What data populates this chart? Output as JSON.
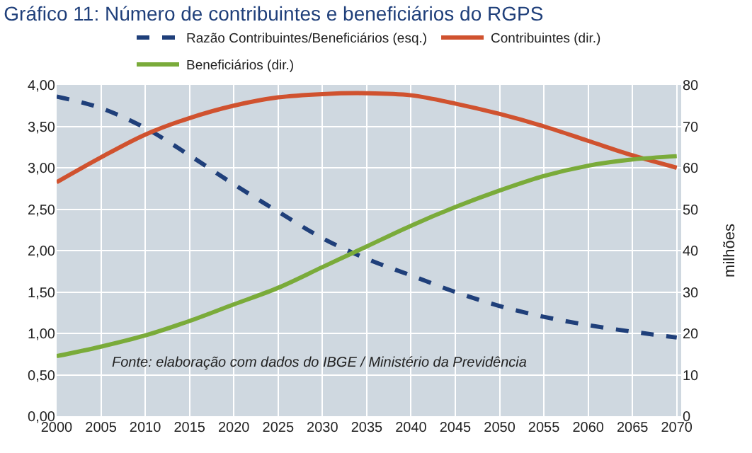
{
  "chart_data": {
    "type": "line",
    "title": "Gráfico 11: Número de contribuintes e beneficiários do RGPS",
    "y2label": "milhões",
    "x": [
      2000,
      2005,
      2010,
      2015,
      2020,
      2025,
      2030,
      2035,
      2040,
      2045,
      2050,
      2055,
      2060,
      2065,
      2070
    ],
    "series": [
      {
        "name": "Razão Contribuintes/Beneficiários (esq.)",
        "color": "#1f3f7a",
        "line_style": "dashed",
        "values": [
          3.86,
          3.72,
          3.48,
          3.15,
          2.8,
          2.47,
          2.15,
          1.9,
          1.7,
          1.5,
          1.33,
          1.2,
          1.1,
          1.02,
          0.95
        ]
      },
      {
        "name": "Contribuintes (dir.)",
        "color": "#d0522f",
        "axis": "y2",
        "values": [
          56.5,
          62.5,
          68,
          72,
          75,
          77,
          77.8,
          78,
          77.5,
          75.5,
          73,
          70,
          66.5,
          63,
          60
        ]
      },
      {
        "name": "Beneficiários (dir.)",
        "color": "#7aab3a",
        "axis": "y2",
        "values": [
          14.5,
          16.8,
          19.5,
          23,
          27,
          31,
          36,
          41,
          46,
          50.5,
          54.5,
          58,
          60.5,
          62,
          62.8
        ]
      }
    ],
    "xlim": [
      2000,
      2070.5
    ],
    "xticks": [
      2000,
      2005,
      2010,
      2015,
      2020,
      2025,
      2030,
      2035,
      2040,
      2045,
      2050,
      2055,
      2060,
      2065,
      2070
    ],
    "ylim": [
      0,
      4
    ],
    "yticks": [
      {
        "value": 0,
        "label": "0,00"
      },
      {
        "value": 0.5,
        "label": "0,50"
      },
      {
        "value": 1,
        "label": "1,00"
      },
      {
        "value": 1.5,
        "label": "1,50"
      },
      {
        "value": 2,
        "label": "2,00"
      },
      {
        "value": 2.5,
        "label": "2,50"
      },
      {
        "value": 3,
        "label": "3,00"
      },
      {
        "value": 3.5,
        "label": "3,50"
      },
      {
        "value": 4,
        "label": "4,00"
      }
    ],
    "y2lim": [
      0,
      80
    ],
    "y2ticks": [
      0,
      10,
      20,
      30,
      40,
      50,
      60,
      70,
      80
    ],
    "grid": true,
    "legend": "top",
    "marker": "none",
    "annotations": [
      "Fonte: elaboração com dados do IBGE / Ministério da Previdência"
    ]
  }
}
